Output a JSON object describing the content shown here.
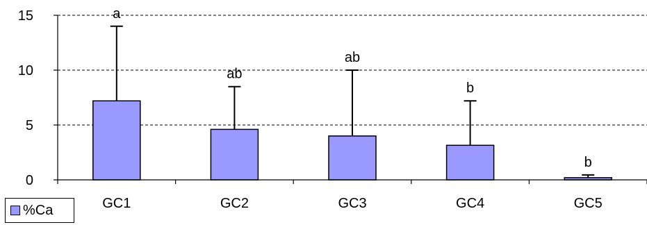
{
  "chart_data": {
    "type": "bar",
    "categories": [
      "GC1",
      "GC2",
      "GC3",
      "GC4",
      "GC5"
    ],
    "series": [
      {
        "name": "%Ca",
        "values": [
          7.2,
          4.6,
          4.0,
          3.15,
          0.2
        ],
        "error": [
          6.8,
          3.9,
          6.0,
          4.05,
          0.25
        ]
      }
    ],
    "significance_labels": [
      "a",
      "ab",
      "ab",
      "b",
      "b"
    ],
    "title": "",
    "xlabel": "",
    "ylabel": "",
    "ylim": [
      0,
      15
    ],
    "yticks": [
      0,
      5,
      10,
      15
    ],
    "grid": "horizontal dashed",
    "legend_position": "bottom-left",
    "colors": {
      "bar": "#9999ff",
      "outline": "#000000",
      "grid": "#000000"
    }
  }
}
